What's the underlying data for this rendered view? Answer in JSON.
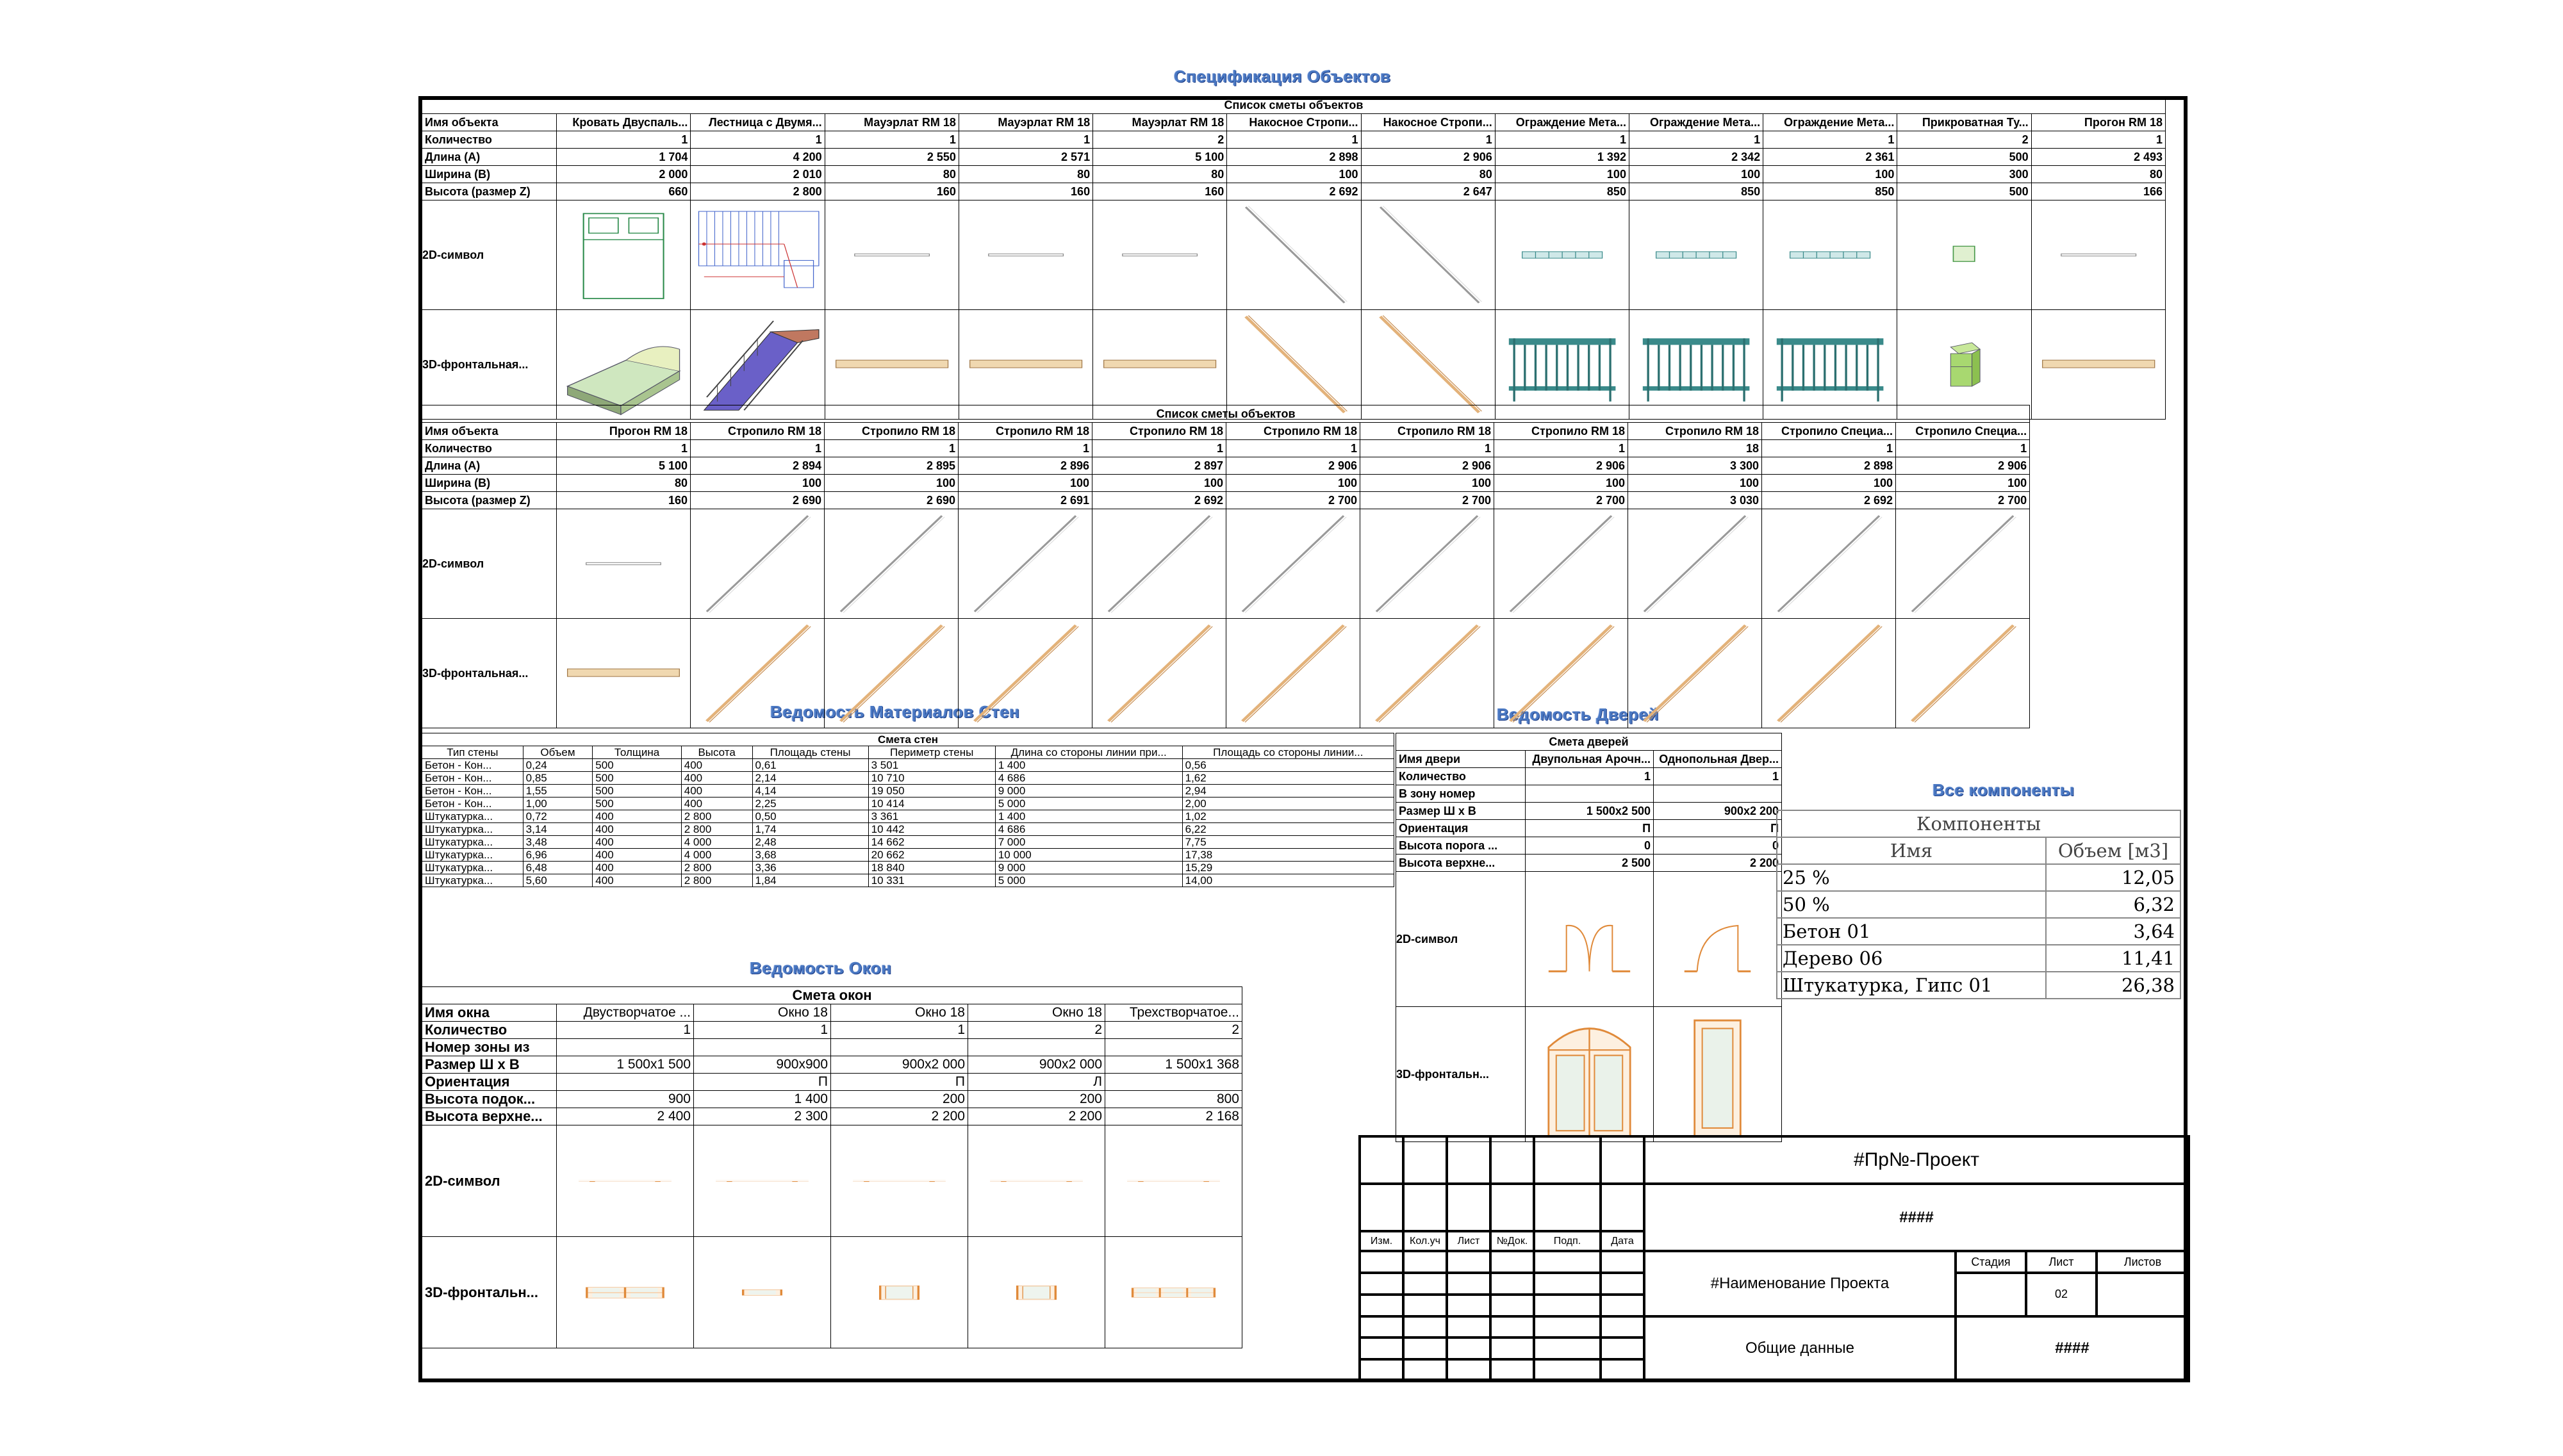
{
  "specification_title": "Спецификация Объектов",
  "objects1": {
    "caption": "Список сметы объектов",
    "rows": [
      "Имя объекта",
      "Количество",
      "Длина (A)",
      "Ширина (B)",
      "Высота (размер Z)",
      "2D-символ",
      "3D-фронтальная..."
    ],
    "columns": [
      {
        "name": "Кровать Двуспаль...",
        "qty": "1",
        "a": "1 704",
        "b": "2 000",
        "z": "660",
        "sym": "bed",
        "front": "bed"
      },
      {
        "name": "Лестница с Двумя...",
        "qty": "1",
        "a": "4 200",
        "b": "2 010",
        "z": "2 800",
        "sym": "stair",
        "front": "stair"
      },
      {
        "name": "Мауэрлат RM 18",
        "qty": "1",
        "a": "2 550",
        "b": "80",
        "z": "160",
        "sym": "hbar",
        "front": "hbeam"
      },
      {
        "name": "Мауэрлат RM 18",
        "qty": "1",
        "a": "2 571",
        "b": "80",
        "z": "160",
        "sym": "hbar",
        "front": "hbeam"
      },
      {
        "name": "Мауэрлат RM 18",
        "qty": "2",
        "a": "5 100",
        "b": "80",
        "z": "160",
        "sym": "hbar",
        "front": "hbeam"
      },
      {
        "name": "Накосное Стропи...",
        "qty": "1",
        "a": "2 898",
        "b": "100",
        "z": "2 692",
        "sym": "diagdown",
        "front": "diagdown"
      },
      {
        "name": "Накосное Стропи...",
        "qty": "1",
        "a": "2 906",
        "b": "80",
        "z": "2 647",
        "sym": "diagdown",
        "front": "diagdown"
      },
      {
        "name": "Ограждение Мета...",
        "qty": "1",
        "a": "1 392",
        "b": "100",
        "z": "850",
        "sym": "rail",
        "front": "fence"
      },
      {
        "name": "Ограждение Мета...",
        "qty": "1",
        "a": "2 342",
        "b": "100",
        "z": "850",
        "sym": "rail",
        "front": "fence"
      },
      {
        "name": "Ограждение Мета...",
        "qty": "1",
        "a": "2 361",
        "b": "100",
        "z": "850",
        "sym": "rail",
        "front": "fence"
      },
      {
        "name": "Прикроватная Ту...",
        "qty": "2",
        "a": "500",
        "b": "300",
        "z": "500",
        "sym": "nightstand",
        "front": "nightstand"
      },
      {
        "name": "Прогон RM 18",
        "qty": "1",
        "a": "2 493",
        "b": "80",
        "z": "166",
        "sym": "hbar",
        "front": "hbeam"
      }
    ]
  },
  "objects2": {
    "caption": "Список сметы объектов",
    "rows": [
      "Имя объекта",
      "Количество",
      "Длина (A)",
      "Ширина (B)",
      "Высота (размер Z)",
      "2D-символ",
      "3D-фронтальная..."
    ],
    "columns": [
      {
        "name": "Прогон RM 18",
        "qty": "1",
        "a": "5 100",
        "b": "80",
        "z": "160",
        "sym": "hbar",
        "front": "hbeam"
      },
      {
        "name": "Стропило RM 18",
        "qty": "1",
        "a": "2 894",
        "b": "100",
        "z": "2 690",
        "sym": "diagup",
        "front": "diagup"
      },
      {
        "name": "Стропило RM 18",
        "qty": "1",
        "a": "2 895",
        "b": "100",
        "z": "2 690",
        "sym": "diagup",
        "front": "diagup"
      },
      {
        "name": "Стропило RM 18",
        "qty": "1",
        "a": "2 896",
        "b": "100",
        "z": "2 691",
        "sym": "diagup",
        "front": "diagup"
      },
      {
        "name": "Стропило RM 18",
        "qty": "1",
        "a": "2 897",
        "b": "100",
        "z": "2 692",
        "sym": "diagup",
        "front": "diagup"
      },
      {
        "name": "Стропило RM 18",
        "qty": "1",
        "a": "2 906",
        "b": "100",
        "z": "2 700",
        "sym": "diagup",
        "front": "diagup"
      },
      {
        "name": "Стропило RM 18",
        "qty": "1",
        "a": "2 906",
        "b": "100",
        "z": "2 700",
        "sym": "diagup",
        "front": "diagup"
      },
      {
        "name": "Стропило RM 18",
        "qty": "1",
        "a": "2 906",
        "b": "100",
        "z": "2 700",
        "sym": "diagup",
        "front": "diagup"
      },
      {
        "name": "Стропило RM 18",
        "qty": "18",
        "a": "3 300",
        "b": "100",
        "z": "3 030",
        "sym": "diagup",
        "front": "diagup"
      },
      {
        "name": "Стропило Специа...",
        "qty": "1",
        "a": "2 898",
        "b": "100",
        "z": "2 692",
        "sym": "diagup",
        "front": "diagup"
      },
      {
        "name": "Стропило Специа...",
        "qty": "1",
        "a": "2 906",
        "b": "100",
        "z": "2 700",
        "sym": "diagup",
        "front": "diagup"
      }
    ]
  },
  "walls": {
    "title": "Ведомость Материалов Стен",
    "caption": "Смета стен",
    "headers": [
      "Тип стены",
      "Объем",
      "Толщина",
      "Высота",
      "Площадь стены",
      "Периметр стены",
      "Длина со стороны линии при...",
      "Площадь со стороны линии..."
    ],
    "rows": [
      [
        "Бетон - Кон...",
        "0,24",
        "500",
        "400",
        "0,61",
        "3 501",
        "1 400",
        "0,56"
      ],
      [
        "Бетон - Кон...",
        "0,85",
        "500",
        "400",
        "2,14",
        "10 710",
        "4 686",
        "1,62"
      ],
      [
        "Бетон - Кон...",
        "1,55",
        "500",
        "400",
        "4,14",
        "19 050",
        "9 000",
        "2,94"
      ],
      [
        "Бетон - Кон...",
        "1,00",
        "500",
        "400",
        "2,25",
        "10 414",
        "5 000",
        "2,00"
      ],
      [
        "Штукатурка...",
        "0,72",
        "400",
        "2 800",
        "0,50",
        "3 361",
        "1 400",
        "1,02"
      ],
      [
        "Штукатурка...",
        "3,14",
        "400",
        "2 800",
        "1,74",
        "10 442",
        "4 686",
        "6,22"
      ],
      [
        "Штукатурка...",
        "3,48",
        "400",
        "4 000",
        "2,48",
        "14 662",
        "7 000",
        "7,75"
      ],
      [
        "Штукатурка...",
        "6,96",
        "400",
        "4 000",
        "3,68",
        "20 662",
        "10 000",
        "17,38"
      ],
      [
        "Штукатурка...",
        "6,48",
        "400",
        "2 800",
        "3,36",
        "18 840",
        "9 000",
        "15,29"
      ],
      [
        "Штукатурка...",
        "5,60",
        "400",
        "2 800",
        "1,84",
        "10 331",
        "5 000",
        "14,00"
      ]
    ]
  },
  "doors": {
    "title": "Ведомость Дверей",
    "caption": "Смета дверей",
    "labels": [
      "Имя двери",
      "Количество",
      "В зону номер",
      "Размер Ш x В",
      "Ориентация",
      "Высота порога ...",
      "Высота верхне...",
      "2D-символ",
      "3D-фронтальн..."
    ],
    "columns": [
      {
        "name": "Двупольная Арочн...",
        "qty": "1",
        "zone": "",
        "size": "1 500x2 500",
        "orient": "П",
        "sill": "0",
        "top": "2 500",
        "sym": "double",
        "front": "arch"
      },
      {
        "name": "Однопольная Двер...",
        "qty": "1",
        "zone": "",
        "size": "900x2 200",
        "orient": "П",
        "sill": "0",
        "top": "2 200",
        "sym": "single",
        "front": "single"
      }
    ]
  },
  "components": {
    "title": "Все компоненты",
    "caption": "Компоненты",
    "headers": [
      "Имя",
      "Объем [м3]"
    ],
    "rows": [
      [
        "25 %",
        "12,05"
      ],
      [
        "50 %",
        "6,32"
      ],
      [
        "Бетон 01",
        "3,64"
      ],
      [
        "Дерево 06",
        "11,41"
      ],
      [
        "Штукатурка, Гипс 01",
        "26,38"
      ]
    ]
  },
  "windows": {
    "title": "Ведомость Окон",
    "caption": "Смета окон",
    "labels": [
      "Имя окна",
      "Количество",
      "Номер зоны из",
      "Размер Ш x В",
      "Ориентация",
      "Высота подок...",
      "Высота верхне...",
      "2D-символ",
      "3D-фронтальн..."
    ],
    "columns": [
      {
        "name": "Двустворчатое ...",
        "qty": "1",
        "zone": "",
        "size": "1 500x1 500",
        "orient": "",
        "sill": "900",
        "top": "2 400",
        "front": "quad"
      },
      {
        "name": "Окно 18",
        "qty": "1",
        "zone": "",
        "size": "900x900",
        "orient": "П",
        "sill": "1 400",
        "top": "2 300",
        "front": "small"
      },
      {
        "name": "Окно 18",
        "qty": "1",
        "zone": "",
        "size": "900x2 000",
        "orient": "П",
        "sill": "200",
        "top": "2 200",
        "front": "tall"
      },
      {
        "name": "Окно 18",
        "qty": "2",
        "zone": "",
        "size": "900x2 000",
        "orient": "Л",
        "sill": "200",
        "top": "2 200",
        "front": "tall"
      },
      {
        "name": "Трехстворчатое...",
        "qty": "2",
        "zone": "",
        "size": "1 500x1 368",
        "orient": "",
        "sill": "800",
        "top": "2 168",
        "front": "six"
      }
    ]
  },
  "titleblock": {
    "project": "#Пр№-Проект",
    "code": "####",
    "headers": [
      "Изм.",
      "Кол.уч",
      "Лист",
      "№Док.",
      "Подп.",
      "Дата"
    ],
    "project_name": "#Наименование Проекта",
    "stage_label": "Стадия",
    "sheet_label": "Лист",
    "sheets_label": "Листов",
    "sheet_number": "02",
    "general": "Общие данные",
    "code2": "####"
  }
}
